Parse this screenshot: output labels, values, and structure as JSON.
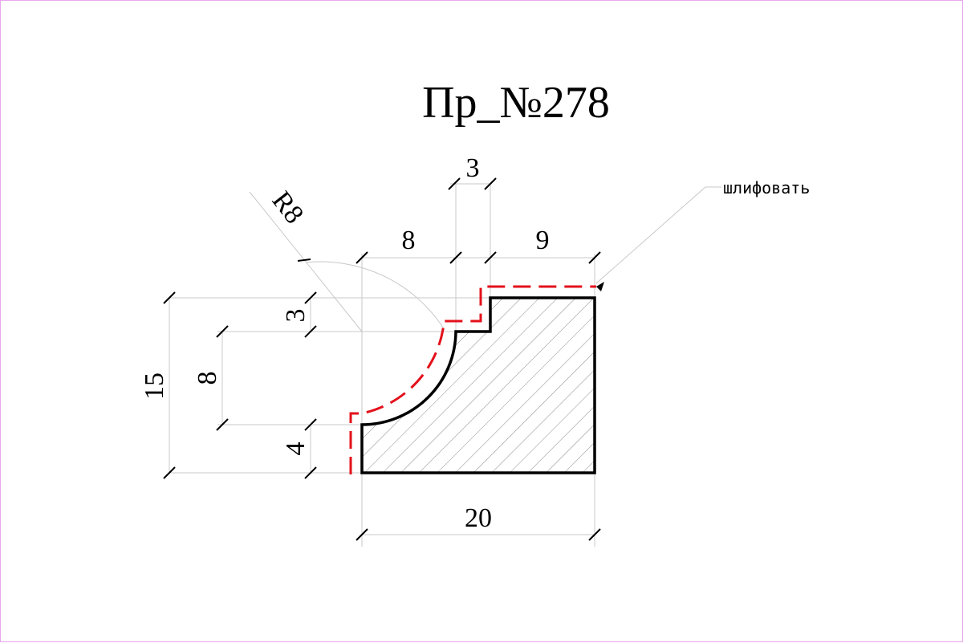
{
  "title": "Пр_№278",
  "note": "шлифовать",
  "dimensions": {
    "radius": "R8",
    "top_step": "3",
    "top_left": "8",
    "top_right": "9",
    "left_step": "3",
    "total_height": "15",
    "arc_height": "8",
    "bottom_height": "4",
    "width": "20"
  },
  "colors": {
    "outline": "#000000",
    "sanding_line": "#e3111b",
    "border": "#e8a6ec",
    "extension_lines": "#c8c8c8"
  }
}
